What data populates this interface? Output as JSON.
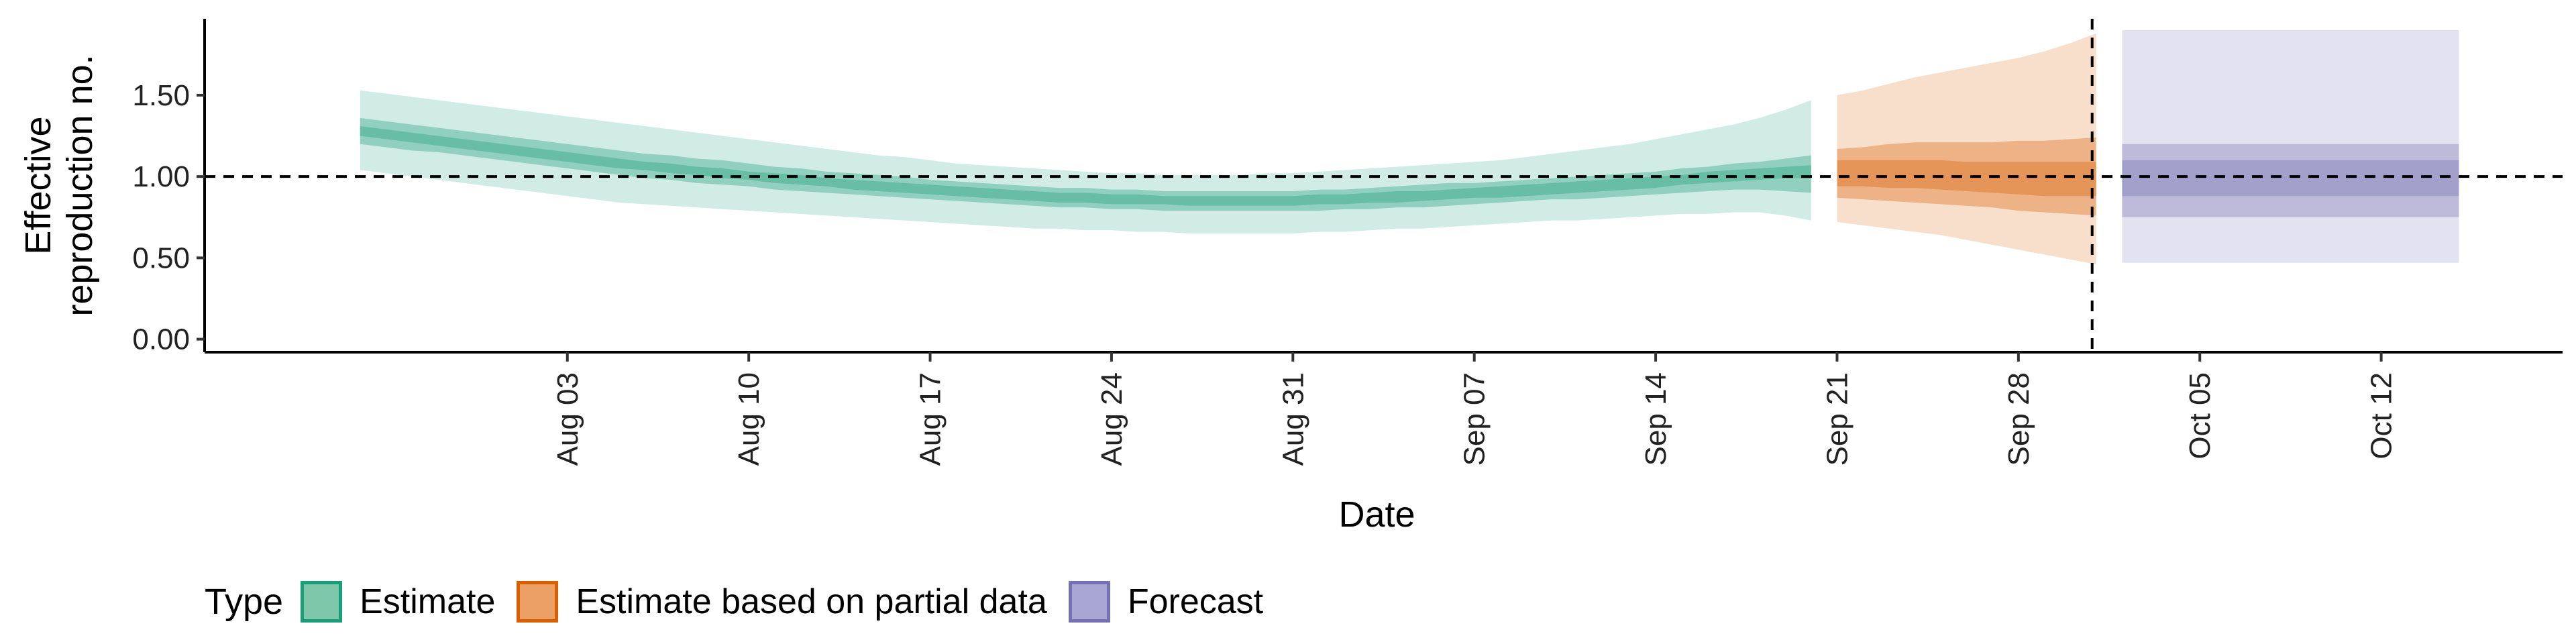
{
  "chart_data": {
    "type": "area",
    "title": "",
    "xlabel": "Date",
    "ylabel_lines": [
      "Effective",
      "reproduction no."
    ],
    "ylim": [
      -0.08,
      1.97
    ],
    "yticks": [
      0.0,
      0.5,
      1.0,
      1.5
    ],
    "ytick_labels": [
      "0.00",
      "0.50",
      "1.00",
      "1.50"
    ],
    "xlim": [
      "2020-07-20",
      "2020-10-19"
    ],
    "xticks": [
      "2020-08-03",
      "2020-08-10",
      "2020-08-17",
      "2020-08-24",
      "2020-08-31",
      "2020-09-07",
      "2020-09-14",
      "2020-09-21",
      "2020-09-28",
      "2020-10-05",
      "2020-10-12"
    ],
    "xtick_labels": [
      "Aug 03",
      "Aug 10",
      "Aug 17",
      "Aug 24",
      "Aug 31",
      "Sep 07",
      "Sep 14",
      "Sep 21",
      "Sep 28",
      "Oct 05",
      "Oct 12"
    ],
    "reference_line": {
      "axis": "y",
      "value": 1.0,
      "style": "dashed"
    },
    "vertical_line": {
      "axis": "x",
      "value": "2020-10-01",
      "style": "dashed"
    },
    "legend": {
      "title": "Type",
      "position": "bottom-left",
      "items": [
        {
          "label": "Estimate",
          "fill": "#7fc7ab",
          "stroke": "#1b9e77"
        },
        {
          "label": "Estimate based on partial data",
          "fill": "#eba165",
          "stroke": "#d95f02"
        },
        {
          "label": "Forecast",
          "fill": "#aaa6d4",
          "stroke": "#7570b3"
        }
      ]
    },
    "series": [
      {
        "name": "Estimate",
        "color": "#1b9e77",
        "band_opacity": [
          0.2,
          0.35,
          0.35
        ],
        "x": [
          "2020-07-26",
          "2020-07-27",
          "2020-07-28",
          "2020-07-29",
          "2020-07-30",
          "2020-07-31",
          "2020-08-01",
          "2020-08-02",
          "2020-08-03",
          "2020-08-04",
          "2020-08-05",
          "2020-08-06",
          "2020-08-07",
          "2020-08-08",
          "2020-08-09",
          "2020-08-10",
          "2020-08-11",
          "2020-08-12",
          "2020-08-13",
          "2020-08-14",
          "2020-08-15",
          "2020-08-16",
          "2020-08-17",
          "2020-08-18",
          "2020-08-19",
          "2020-08-20",
          "2020-08-21",
          "2020-08-22",
          "2020-08-23",
          "2020-08-24",
          "2020-08-25",
          "2020-08-26",
          "2020-08-27",
          "2020-08-28",
          "2020-08-29",
          "2020-08-30",
          "2020-08-31",
          "2020-09-01",
          "2020-09-02",
          "2020-09-03",
          "2020-09-04",
          "2020-09-05",
          "2020-09-06",
          "2020-09-07",
          "2020-09-08",
          "2020-09-09",
          "2020-09-10",
          "2020-09-11",
          "2020-09-12",
          "2020-09-13",
          "2020-09-14",
          "2020-09-15",
          "2020-09-16",
          "2020-09-17",
          "2020-09-18",
          "2020-09-19",
          "2020-09-20"
        ],
        "lower90": [
          1.04,
          1.02,
          1.0,
          0.98,
          0.96,
          0.94,
          0.92,
          0.9,
          0.88,
          0.86,
          0.84,
          0.83,
          0.82,
          0.81,
          0.8,
          0.79,
          0.78,
          0.77,
          0.76,
          0.75,
          0.74,
          0.73,
          0.72,
          0.71,
          0.7,
          0.69,
          0.68,
          0.68,
          0.67,
          0.67,
          0.66,
          0.66,
          0.65,
          0.65,
          0.65,
          0.65,
          0.65,
          0.66,
          0.66,
          0.67,
          0.68,
          0.68,
          0.69,
          0.7,
          0.71,
          0.72,
          0.73,
          0.73,
          0.74,
          0.75,
          0.76,
          0.77,
          0.77,
          0.78,
          0.78,
          0.76,
          0.73
        ],
        "upper90": [
          1.53,
          1.51,
          1.49,
          1.47,
          1.45,
          1.43,
          1.41,
          1.39,
          1.37,
          1.35,
          1.33,
          1.31,
          1.29,
          1.27,
          1.25,
          1.23,
          1.21,
          1.19,
          1.17,
          1.15,
          1.13,
          1.12,
          1.1,
          1.08,
          1.07,
          1.06,
          1.05,
          1.04,
          1.03,
          1.02,
          1.02,
          1.01,
          1.01,
          1.01,
          1.01,
          1.02,
          1.02,
          1.03,
          1.04,
          1.05,
          1.06,
          1.07,
          1.08,
          1.09,
          1.1,
          1.12,
          1.14,
          1.16,
          1.18,
          1.2,
          1.23,
          1.26,
          1.29,
          1.32,
          1.36,
          1.41,
          1.47
        ],
        "lower50": [
          1.2,
          1.18,
          1.16,
          1.15,
          1.13,
          1.11,
          1.09,
          1.07,
          1.05,
          1.03,
          1.01,
          0.99,
          0.98,
          0.96,
          0.95,
          0.94,
          0.92,
          0.91,
          0.9,
          0.89,
          0.88,
          0.87,
          0.86,
          0.85,
          0.84,
          0.83,
          0.82,
          0.81,
          0.81,
          0.8,
          0.8,
          0.79,
          0.79,
          0.79,
          0.79,
          0.79,
          0.79,
          0.79,
          0.8,
          0.8,
          0.81,
          0.81,
          0.82,
          0.83,
          0.84,
          0.85,
          0.86,
          0.86,
          0.87,
          0.88,
          0.89,
          0.9,
          0.91,
          0.92,
          0.92,
          0.91,
          0.9
        ],
        "upper50": [
          1.36,
          1.34,
          1.32,
          1.3,
          1.28,
          1.26,
          1.24,
          1.22,
          1.2,
          1.18,
          1.16,
          1.14,
          1.13,
          1.11,
          1.1,
          1.08,
          1.06,
          1.05,
          1.03,
          1.02,
          1.01,
          1.0,
          0.98,
          0.97,
          0.96,
          0.95,
          0.94,
          0.93,
          0.93,
          0.92,
          0.92,
          0.91,
          0.91,
          0.91,
          0.91,
          0.91,
          0.91,
          0.92,
          0.92,
          0.93,
          0.94,
          0.95,
          0.96,
          0.96,
          0.97,
          0.98,
          0.99,
          1.0,
          1.01,
          1.02,
          1.03,
          1.05,
          1.06,
          1.08,
          1.09,
          1.11,
          1.13
        ],
        "lower20": [
          1.25,
          1.23,
          1.21,
          1.19,
          1.17,
          1.15,
          1.13,
          1.11,
          1.09,
          1.07,
          1.05,
          1.04,
          1.02,
          1.01,
          0.99,
          0.98,
          0.96,
          0.95,
          0.94,
          0.92,
          0.91,
          0.9,
          0.89,
          0.88,
          0.87,
          0.86,
          0.85,
          0.84,
          0.84,
          0.83,
          0.83,
          0.83,
          0.82,
          0.82,
          0.82,
          0.82,
          0.82,
          0.83,
          0.83,
          0.84,
          0.84,
          0.85,
          0.86,
          0.87,
          0.87,
          0.88,
          0.89,
          0.9,
          0.91,
          0.92,
          0.93,
          0.95,
          0.96,
          0.97,
          0.98,
          0.99,
          0.99
        ],
        "upper20": [
          1.31,
          1.29,
          1.27,
          1.25,
          1.23,
          1.21,
          1.19,
          1.17,
          1.15,
          1.13,
          1.11,
          1.09,
          1.08,
          1.06,
          1.05,
          1.03,
          1.02,
          1.01,
          0.99,
          0.98,
          0.97,
          0.96,
          0.95,
          0.94,
          0.93,
          0.92,
          0.91,
          0.9,
          0.9,
          0.89,
          0.89,
          0.88,
          0.88,
          0.88,
          0.88,
          0.88,
          0.88,
          0.89,
          0.89,
          0.9,
          0.91,
          0.91,
          0.92,
          0.93,
          0.94,
          0.95,
          0.96,
          0.97,
          0.98,
          0.99,
          1.0,
          1.01,
          1.03,
          1.04,
          1.05,
          1.06,
          1.07
        ]
      },
      {
        "name": "Estimate based on partial data",
        "color": "#d95f02",
        "band_opacity": [
          0.2,
          0.35,
          0.35
        ],
        "x": [
          "2020-09-21",
          "2020-09-22",
          "2020-09-23",
          "2020-09-24",
          "2020-09-25",
          "2020-09-26",
          "2020-09-27",
          "2020-09-28",
          "2020-09-29",
          "2020-09-30",
          "2020-10-01"
        ],
        "lower90": [
          0.72,
          0.7,
          0.68,
          0.66,
          0.64,
          0.61,
          0.58,
          0.55,
          0.52,
          0.49,
          0.46
        ],
        "upper90": [
          1.5,
          1.53,
          1.57,
          1.61,
          1.64,
          1.67,
          1.7,
          1.73,
          1.77,
          1.82,
          1.88
        ],
        "lower50": [
          0.87,
          0.86,
          0.85,
          0.84,
          0.83,
          0.82,
          0.81,
          0.79,
          0.78,
          0.77,
          0.76
        ],
        "upper50": [
          1.17,
          1.18,
          1.2,
          1.21,
          1.21,
          1.21,
          1.21,
          1.22,
          1.22,
          1.23,
          1.24
        ],
        "lower20": [
          0.94,
          0.94,
          0.93,
          0.93,
          0.92,
          0.91,
          0.9,
          0.89,
          0.88,
          0.88,
          0.88
        ],
        "upper20": [
          1.1,
          1.1,
          1.1,
          1.1,
          1.1,
          1.09,
          1.09,
          1.09,
          1.09,
          1.09,
          1.09
        ]
      },
      {
        "name": "Forecast",
        "color": "#7570b3",
        "band_opacity": [
          0.2,
          0.35,
          0.35
        ],
        "x": [
          "2020-10-02",
          "2020-10-15"
        ],
        "lower90": [
          0.47,
          0.47
        ],
        "upper90": [
          1.9,
          1.9
        ],
        "lower50": [
          0.75,
          0.75
        ],
        "upper50": [
          1.2,
          1.2
        ],
        "lower20": [
          0.88,
          0.88
        ],
        "upper20": [
          1.1,
          1.1
        ]
      }
    ]
  }
}
